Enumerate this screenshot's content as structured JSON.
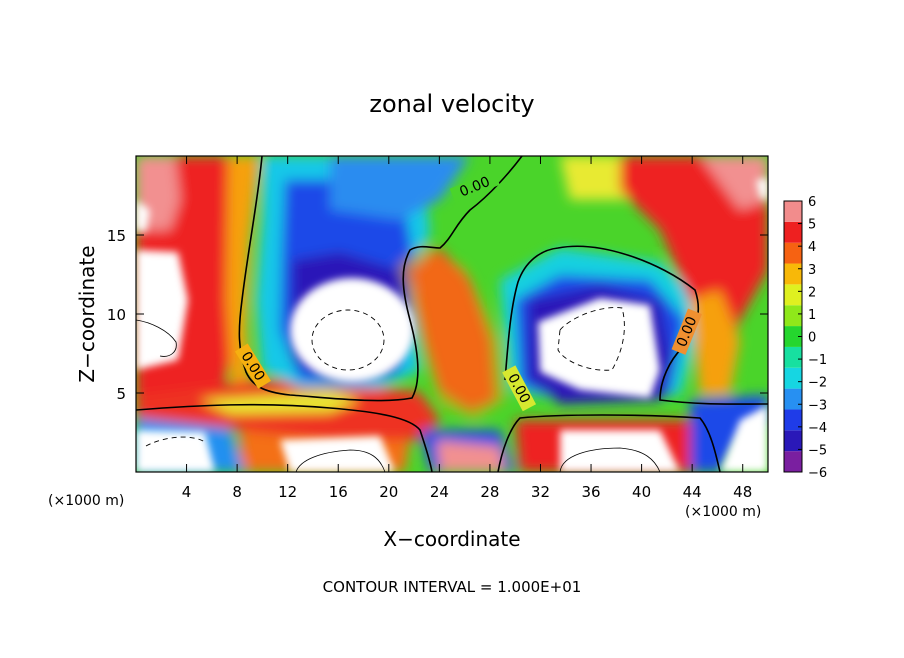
{
  "chart_data": {
    "type": "heatmap",
    "title": "zonal velocity",
    "xlabel": "X−coordinate",
    "ylabel": "Z−coordinate",
    "x_unit_left": "(×1000 m)",
    "x_unit_right": "(×1000 m)",
    "footer": "CONTOUR INTERVAL = 1.000E+01",
    "xlim": [
      0,
      50
    ],
    "ylim": [
      0,
      20
    ],
    "x_ticks": [
      4,
      8,
      12,
      16,
      20,
      24,
      28,
      32,
      36,
      40,
      44,
      48
    ],
    "y_ticks": [
      5,
      10,
      15
    ],
    "colorbar": {
      "levels": [
        -6,
        -5,
        -4,
        -3,
        -2,
        -1,
        0,
        1,
        2,
        3,
        4,
        5,
        6
      ],
      "colors": [
        "#7a1fa0",
        "#2a18b8",
        "#1f3ce8",
        "#2790f2",
        "#16d6e2",
        "#17e0a0",
        "#25d62e",
        "#8fe81a",
        "#dff020",
        "#f8b808",
        "#f66212",
        "#ee2020",
        "#f28c8c"
      ],
      "out_of_range": "#ffffff"
    },
    "contour_labels": [
      "0.00",
      "0.00",
      "0.00",
      "0.00"
    ]
  }
}
